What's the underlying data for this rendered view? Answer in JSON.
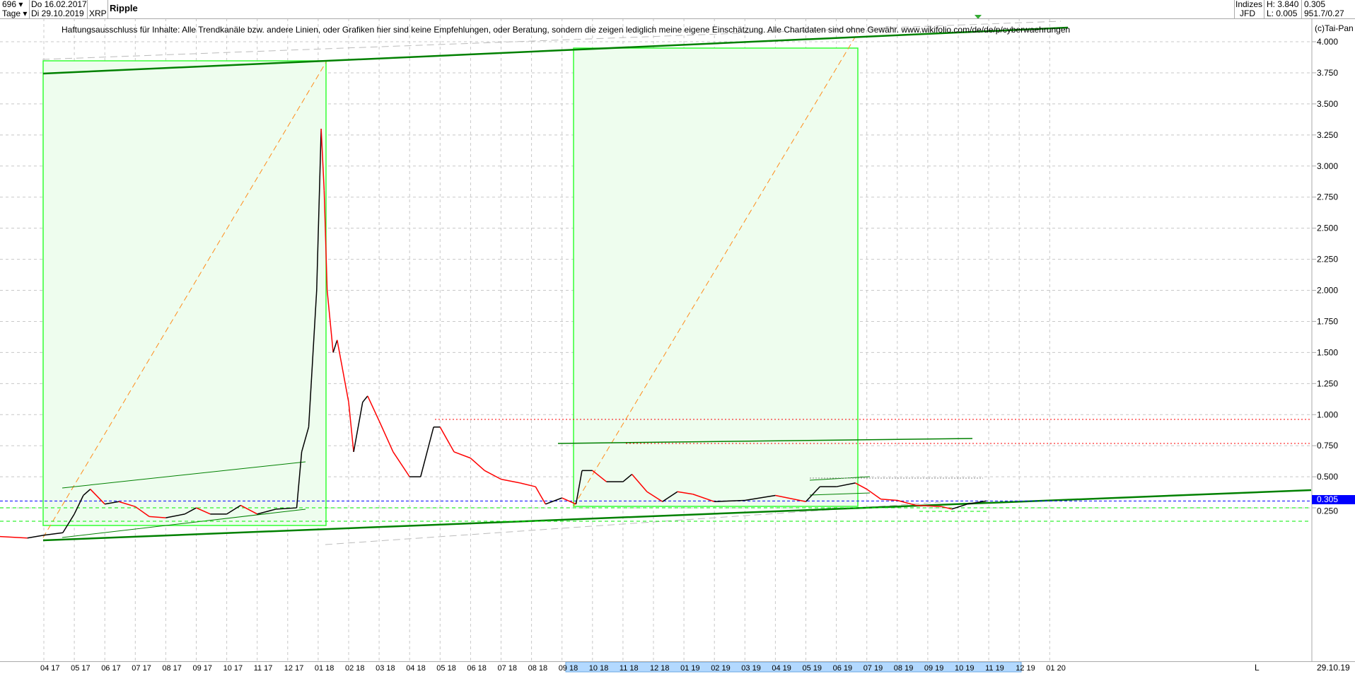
{
  "header": {
    "count": "696",
    "period": "Tage",
    "date_start": "Do 16.02.2017",
    "date_end": "Di 29.10.2019",
    "symbol": "XRP",
    "title": "Ripple",
    "indizes": "Indizes",
    "jfd": "JFD",
    "high": "H: 3.840",
    "low": "L: 0.005",
    "last": "0.305",
    "extra": "951.7/0.27"
  },
  "disclaimer": "Haftungsausschluss für Inhalte: Alle Trendkanäle bzw. andere Linien, oder Grafiken hier sind keine Empfehlungen, oder Beratung, sondern die zeigen lediglich meine eigene Einschätzung. Alle Chartdaten sind ohne Gewähr.  www.wikifolio.com/de/de/p/cyberwaehrungen",
  "copyright": "(c)Tai-Pan",
  "footer": {
    "mode": "L",
    "date": "29.10.19"
  },
  "colors": {
    "up": "#000000",
    "down": "#ff0000",
    "current": "#0000ff",
    "trend": "#008000",
    "box": "#00ff00"
  },
  "chart_data": {
    "type": "line",
    "ylim": [
      0,
      4.1
    ],
    "yticks": [
      "0.250",
      "0.500",
      "0.750",
      "1.000",
      "1.250",
      "1.500",
      "1.750",
      "2.000",
      "2.250",
      "2.500",
      "2.750",
      "3.000",
      "3.250",
      "3.500",
      "3.750",
      "4.000"
    ],
    "xticks": [
      "04|17",
      "05|17",
      "06|17",
      "07|17",
      "08|17",
      "09|17",
      "10|17",
      "11|17",
      "12|17",
      "01|18",
      "02|18",
      "03|18",
      "04|18",
      "05|18",
      "06|18",
      "07|18",
      "08|18",
      "09|18",
      "10|18",
      "11|18",
      "12|18",
      "01|19",
      "02|19",
      "03|19",
      "04|19",
      "05|19",
      "06|19",
      "07|19",
      "08|19",
      "09|19",
      "10|19",
      "11|19",
      "12|19",
      "01|20"
    ],
    "current_value_label": "0.305",
    "current_value": 0.305,
    "x": [
      "2017-02-16",
      "2017-03-15",
      "2017-04-01",
      "2017-04-20",
      "2017-05-01",
      "2017-05-10",
      "2017-05-17",
      "2017-06-01",
      "2017-06-15",
      "2017-07-01",
      "2017-07-15",
      "2017-08-01",
      "2017-08-20",
      "2017-09-01",
      "2017-09-15",
      "2017-10-01",
      "2017-10-15",
      "2017-11-01",
      "2017-11-20",
      "2017-12-10",
      "2017-12-15",
      "2017-12-22",
      "2017-12-30",
      "2018-01-04",
      "2018-01-07",
      "2018-01-10",
      "2018-01-16",
      "2018-01-20",
      "2018-02-01",
      "2018-02-06",
      "2018-02-15",
      "2018-02-20",
      "2018-03-01",
      "2018-03-15",
      "2018-04-01",
      "2018-04-12",
      "2018-04-25",
      "2018-05-01",
      "2018-05-15",
      "2018-06-01",
      "2018-06-15",
      "2018-07-01",
      "2018-07-20",
      "2018-08-05",
      "2018-08-15",
      "2018-09-01",
      "2018-09-15",
      "2018-09-21",
      "2018-10-01",
      "2018-10-15",
      "2018-11-01",
      "2018-11-10",
      "2018-11-25",
      "2018-12-10",
      "2018-12-25",
      "2019-01-10",
      "2019-02-01",
      "2019-03-01",
      "2019-04-01",
      "2019-05-01",
      "2019-05-15",
      "2019-06-01",
      "2019-06-20",
      "2019-07-01",
      "2019-07-15",
      "2019-08-01",
      "2019-08-20",
      "2019-09-15",
      "2019-09-25",
      "2019-10-10",
      "2019-10-29"
    ],
    "y": [
      0.02,
      0.007,
      0.03,
      0.05,
      0.2,
      0.35,
      0.4,
      0.28,
      0.3,
      0.26,
      0.18,
      0.17,
      0.2,
      0.25,
      0.2,
      0.2,
      0.27,
      0.2,
      0.24,
      0.25,
      0.7,
      0.9,
      2.0,
      3.3,
      2.8,
      2.0,
      1.5,
      1.6,
      1.1,
      0.7,
      1.1,
      1.15,
      0.95,
      0.7,
      0.5,
      0.5,
      0.9,
      0.9,
      0.7,
      0.65,
      0.55,
      0.48,
      0.45,
      0.42,
      0.28,
      0.33,
      0.28,
      0.55,
      0.55,
      0.46,
      0.46,
      0.52,
      0.38,
      0.3,
      0.38,
      0.36,
      0.3,
      0.31,
      0.35,
      0.3,
      0.42,
      0.42,
      0.45,
      0.4,
      0.32,
      0.31,
      0.27,
      0.26,
      0.24,
      0.28,
      0.305
    ]
  }
}
